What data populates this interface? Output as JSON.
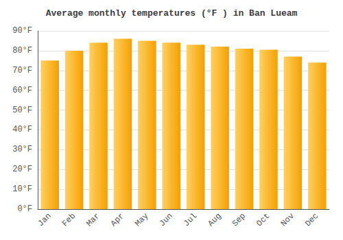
{
  "chart_data": {
    "type": "bar",
    "title": "Average monthly temperatures (°F ) in Ban Lueam",
    "categories": [
      "Jan",
      "Feb",
      "Mar",
      "Apr",
      "May",
      "Jun",
      "Jul",
      "Aug",
      "Sep",
      "Oct",
      "Nov",
      "Dec"
    ],
    "values": [
      75,
      80,
      84,
      86,
      85,
      84,
      83,
      82,
      81,
      80.5,
      77,
      74
    ],
    "color": [
      "#FFD060",
      "#F5A000"
    ],
    "ylim": [
      0,
      90
    ],
    "yticks": [
      {
        "value": 0,
        "label": "0°F"
      },
      {
        "value": 10,
        "label": "10°F"
      },
      {
        "value": 20,
        "label": "20°F"
      },
      {
        "value": 30,
        "label": "30°F"
      },
      {
        "value": 40,
        "label": "40°F"
      },
      {
        "value": 50,
        "label": "50°F"
      },
      {
        "value": 60,
        "label": "60°F"
      },
      {
        "value": 70,
        "label": "70°F"
      },
      {
        "value": 80,
        "label": "80°F"
      },
      {
        "value": 90,
        "label": "90°F"
      }
    ],
    "grid": true
  }
}
